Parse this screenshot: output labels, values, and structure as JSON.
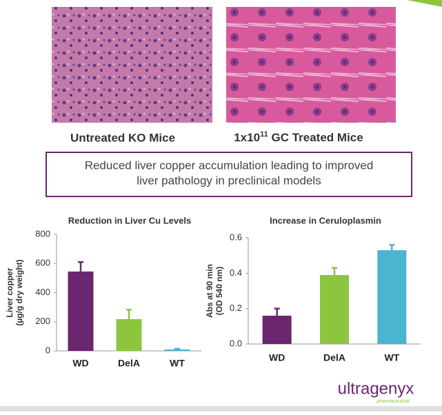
{
  "images": {
    "captions": [
      {
        "text": "Untreated KO Mice"
      },
      {
        "text": "1x10",
        "sup": "11",
        "rest": " GC Treated Mice"
      }
    ]
  },
  "callout": {
    "lines": [
      "Reduced liver copper accumulation leading to improved",
      "liver pathology in preclinical models"
    ]
  },
  "logo": {
    "name": "ultragenyx",
    "tagline": "pharmaceutical"
  },
  "chart_data": [
    {
      "type": "bar",
      "title": "Reduction in Liver Cu Levels",
      "ylabel": [
        "Liver copper",
        "(µg/g dry weight)"
      ],
      "categories": [
        "WD",
        "DelA",
        "WT"
      ],
      "values": [
        545,
        218,
        10
      ],
      "errors": [
        65,
        65,
        5
      ],
      "colors": [
        "#6b2670",
        "#8cc63f",
        "#4bb5cf"
      ],
      "ylim": [
        0,
        800
      ],
      "yticks": [
        0,
        200,
        400,
        600,
        800
      ]
    },
    {
      "type": "bar",
      "title": "Increase in Ceruloplasmin",
      "ylabel": [
        "Abs at 90 min",
        "(OD 540 nm)"
      ],
      "categories": [
        "WD",
        "DelA",
        "WT"
      ],
      "values": [
        0.16,
        0.39,
        0.53
      ],
      "errors": [
        0.04,
        0.04,
        0.03
      ],
      "colors": [
        "#6b2670",
        "#8cc63f",
        "#4bb5cf"
      ],
      "ylim": [
        0,
        0.6
      ],
      "yticks": [
        {
          "value": 0,
          "label": "0.0"
        },
        0.2,
        0.4,
        0.6
      ]
    }
  ]
}
